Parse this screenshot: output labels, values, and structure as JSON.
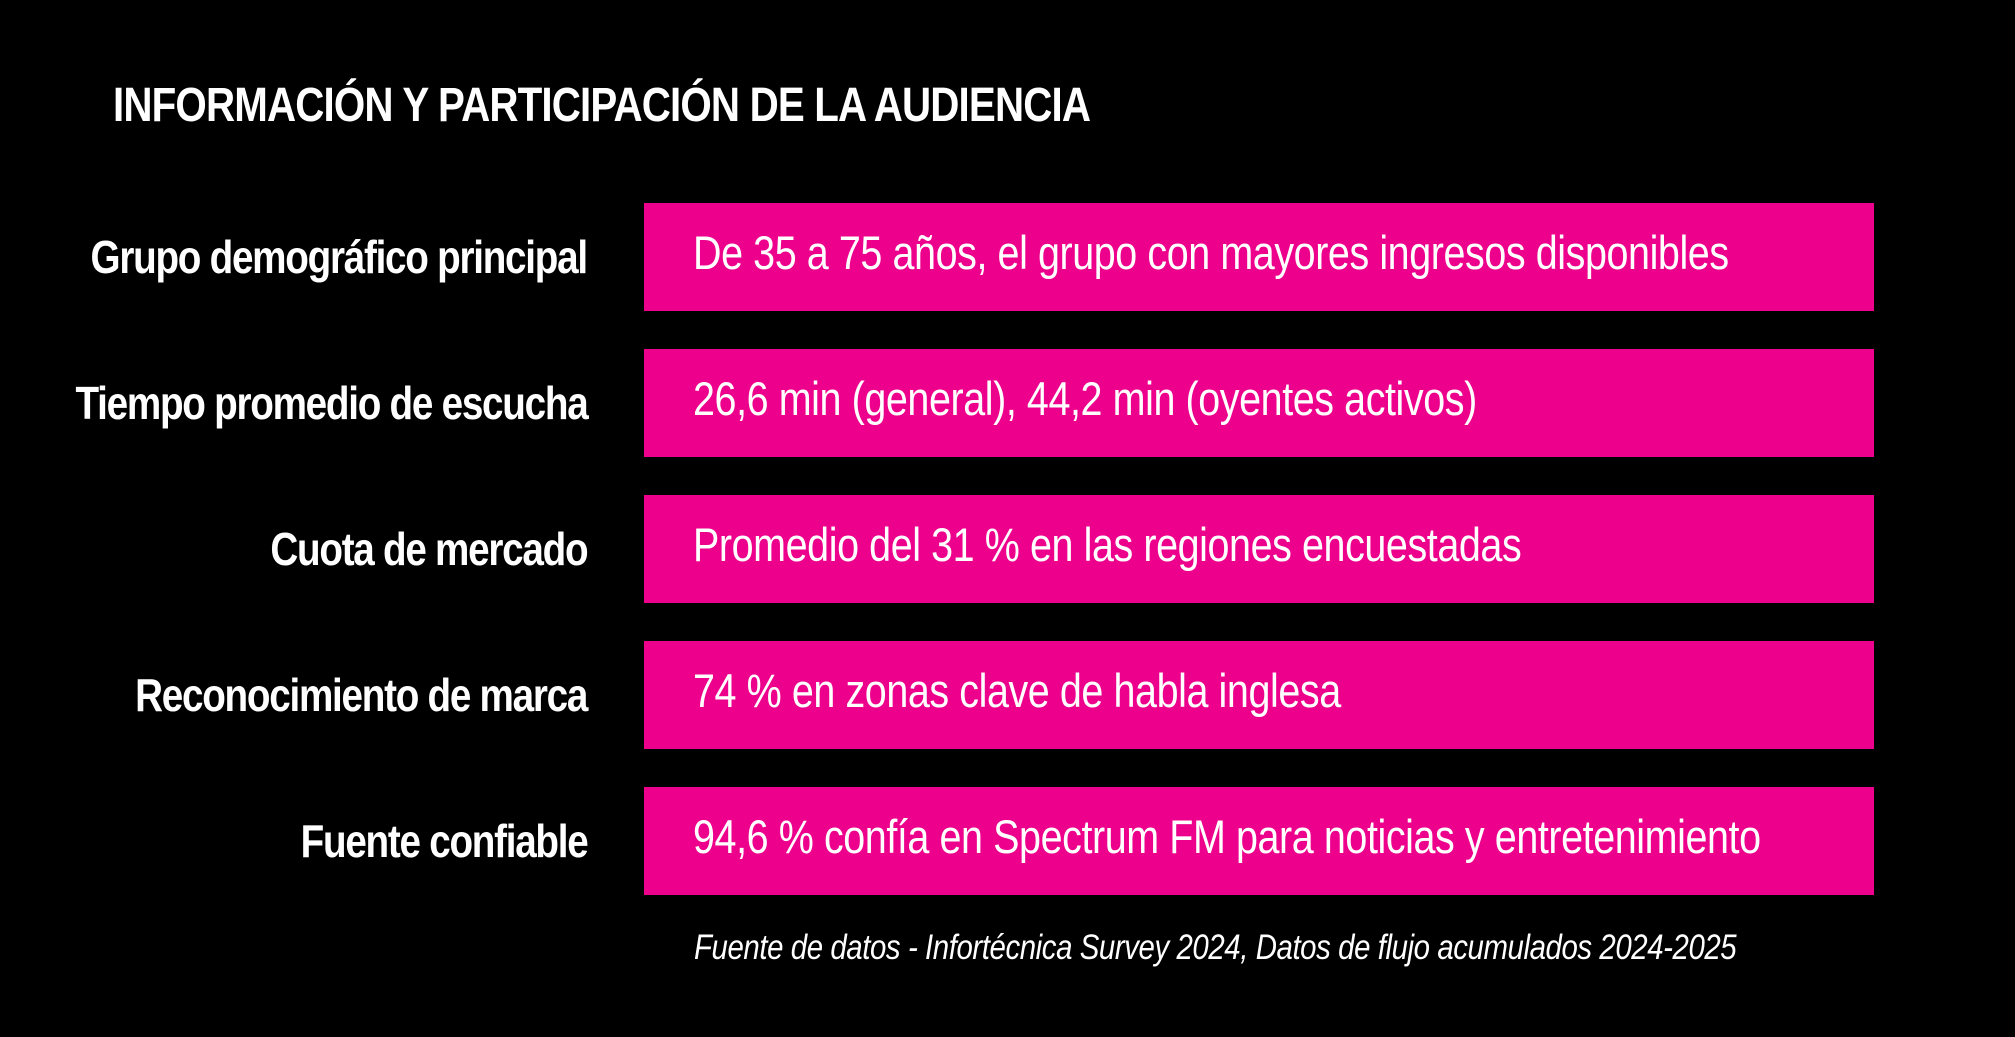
{
  "title": "INFORMACIÓN Y PARTICIPACIÓN DE LA AUDIENCIA",
  "colors": {
    "background": "#000000",
    "accent": "#ec008c",
    "text": "#ffffff"
  },
  "rows": [
    {
      "label": "Grupo demográfico principal",
      "value": "De 35 a 75 años, el grupo con mayores ingresos disponibles"
    },
    {
      "label": "Tiempo promedio de escucha",
      "value": "26,6 min (general), 44,2 min (oyentes activos)"
    },
    {
      "label": "Cuota de mercado",
      "value": "Promedio del 31 % en las regiones encuestadas"
    },
    {
      "label": "Reconocimiento de marca",
      "value": "74 % en zonas clave de habla inglesa"
    },
    {
      "label": "Fuente confiable",
      "value": "94,6 % confía en Spectrum FM para noticias y entretenimiento"
    }
  ],
  "source": "Fuente de datos - Infortécnica Survey 2024, Datos de flujo acumulados 2024-2025"
}
